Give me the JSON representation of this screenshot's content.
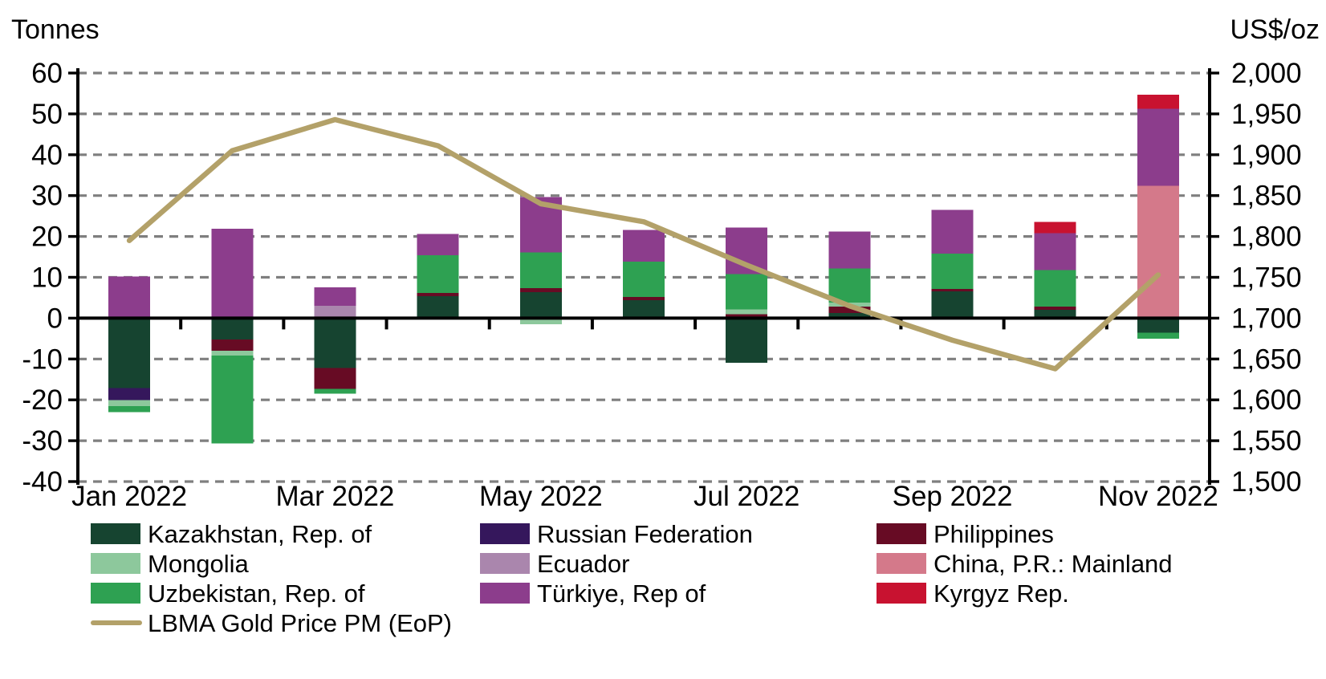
{
  "chart_data": {
    "type": "bar",
    "subtype": "stacked-bar-with-line-overlay",
    "categories": [
      "Jan 2022",
      "Feb 2022",
      "Mar 2022",
      "Apr 2022",
      "May 2022",
      "Jun 2022",
      "Jul 2022",
      "Aug 2022",
      "Sep 2022",
      "Oct 2022",
      "Nov 2022"
    ],
    "x_tick_labels_shown": [
      "Jan 2022",
      "Mar 2022",
      "May 2022",
      "Jul 2022",
      "Sep 2022",
      "Nov 2022"
    ],
    "series": [
      {
        "name": "Kazakhstan, Rep. of",
        "color": "#164430",
        "values": [
          -17.1,
          -5.2,
          -12.2,
          5.4,
          6.4,
          4.4,
          -10.9,
          1.3,
          6.6,
          2.0,
          -3.6
        ]
      },
      {
        "name": "Russian Federation",
        "color": "#35175c",
        "values": [
          -3.0,
          0,
          0,
          0,
          0,
          0,
          0,
          0,
          0,
          0,
          0
        ]
      },
      {
        "name": "Philippines",
        "color": "#670b24",
        "values": [
          0,
          -2.8,
          -5.1,
          0.8,
          0.9,
          0.8,
          1.0,
          1.5,
          0.6,
          0.8,
          0
        ]
      },
      {
        "name": "Mongolia",
        "color": "#8dc89c",
        "values": [
          -1.4,
          -1.2,
          0,
          0,
          -1.5,
          0,
          1.1,
          1.0,
          0,
          0,
          0
        ]
      },
      {
        "name": "Ecuador",
        "color": "#aa86ad",
        "values": [
          0,
          0,
          3.0,
          0,
          0,
          0,
          0,
          0,
          0,
          0,
          0
        ]
      },
      {
        "name": "China, P.R.: Mainland",
        "color": "#d4798a",
        "values": [
          0,
          0,
          0,
          0,
          0,
          0,
          0,
          0,
          0,
          0,
          32.4
        ]
      },
      {
        "name": "Uzbekistan, Rep. of",
        "color": "#2ea152",
        "values": [
          -1.5,
          -21.5,
          -1.2,
          9.2,
          8.8,
          8.6,
          8.7,
          8.4,
          8.6,
          9.0,
          -1.4
        ]
      },
      {
        "name": "Türkiye, Rep of",
        "color": "#8c3d8c",
        "values": [
          10.2,
          21.9,
          4.5,
          5.2,
          13.5,
          7.8,
          11.4,
          9.0,
          10.7,
          9.0,
          18.9
        ]
      },
      {
        "name": "Kyrgyz Rep.",
        "color": "#c81230",
        "values": [
          0,
          0,
          0,
          0,
          0,
          0,
          0,
          0,
          0,
          2.8,
          3.4
        ]
      }
    ],
    "line_series": {
      "name": "LBMA Gold Price PM (EoP)",
      "color": "#b3a169",
      "axis": "right",
      "values": [
        1795,
        1905,
        1943,
        1911,
        1840,
        1818,
        1765,
        1715,
        1673,
        1638,
        1753
      ]
    },
    "left_axis": {
      "title": "Tonnes",
      "min": -40,
      "max": 60,
      "step": 10,
      "ticks": [
        "60",
        "50",
        "40",
        "30",
        "20",
        "10",
        "0",
        "-10",
        "-20",
        "-30",
        "-40"
      ]
    },
    "right_axis": {
      "title": "US$/oz",
      "min": 1500,
      "max": 2000,
      "step": 50,
      "ticks": [
        "2,000",
        "1,950",
        "1,900",
        "1,850",
        "1,800",
        "1,750",
        "1,700",
        "1,650",
        "1,600",
        "1,550",
        "1,500"
      ]
    },
    "grid": {
      "on": true,
      "color": "#7f7f7f",
      "style": "dashed",
      "zero_line_color": "#000000"
    },
    "legend": {
      "position": "bottom",
      "columns": [
        [
          {
            "label": "Kazakhstan, Rep. of",
            "color": "#164430",
            "swatch": "box"
          },
          {
            "label": "Mongolia",
            "color": "#8dc89c",
            "swatch": "box"
          },
          {
            "label": "Uzbekistan, Rep. of",
            "color": "#2ea152",
            "swatch": "box"
          },
          {
            "label": "LBMA Gold Price PM (EoP)",
            "color": "#b3a169",
            "swatch": "line"
          }
        ],
        [
          {
            "label": "Russian Federation",
            "color": "#35175c",
            "swatch": "box"
          },
          {
            "label": "Ecuador",
            "color": "#aa86ad",
            "swatch": "box"
          },
          {
            "label": "Türkiye, Rep of",
            "color": "#8c3d8c",
            "swatch": "box"
          }
        ],
        [
          {
            "label": "Philippines",
            "color": "#670b24",
            "swatch": "box"
          },
          {
            "label": "China, P.R.: Mainland",
            "color": "#d4798a",
            "swatch": "box"
          },
          {
            "label": "Kyrgyz Rep.",
            "color": "#c81230",
            "swatch": "box"
          }
        ]
      ]
    }
  }
}
